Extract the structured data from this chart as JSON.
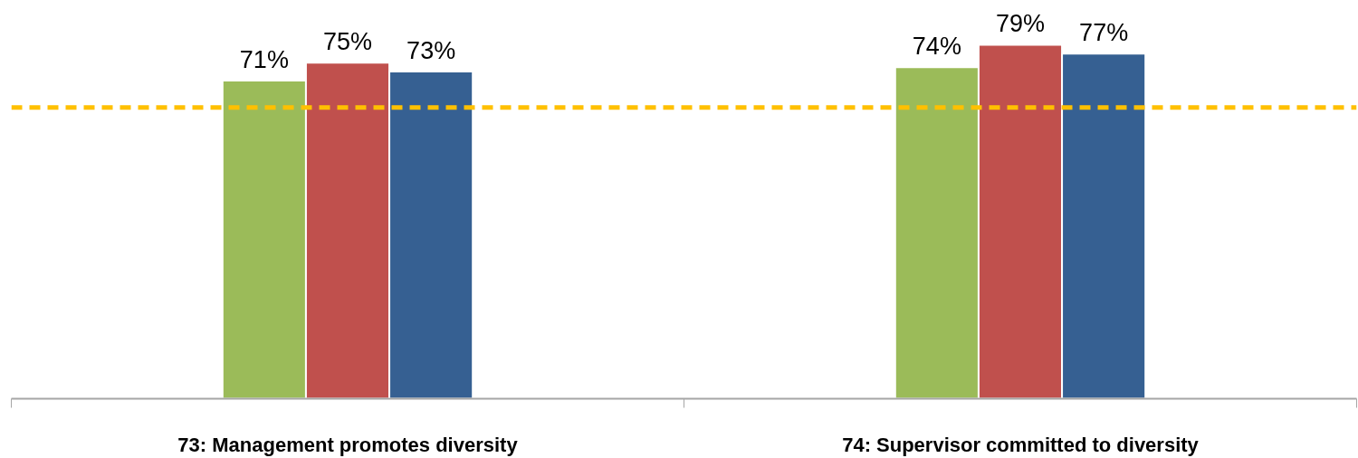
{
  "chart_data": {
    "type": "bar",
    "categories": [
      "73: Management promotes diversity",
      "74: Supervisor committed to diversity"
    ],
    "series": [
      {
        "color": "#9bbb59",
        "values": [
          71,
          74
        ],
        "value_labels": [
          "71%",
          "74%"
        ]
      },
      {
        "color": "#c0504d",
        "values": [
          75,
          79
        ],
        "value_labels": [
          "75%",
          "79%"
        ]
      },
      {
        "color": "#366092",
        "values": [
          73,
          77
        ],
        "value_labels": [
          "73%",
          "77%"
        ]
      }
    ],
    "tick_labels": "x",
    "grid": false,
    "ref_lines": [
      {
        "axis": "y",
        "value": 65,
        "label": null,
        "color": "#ffc000",
        "line_style": "dashed"
      }
    ]
  }
}
